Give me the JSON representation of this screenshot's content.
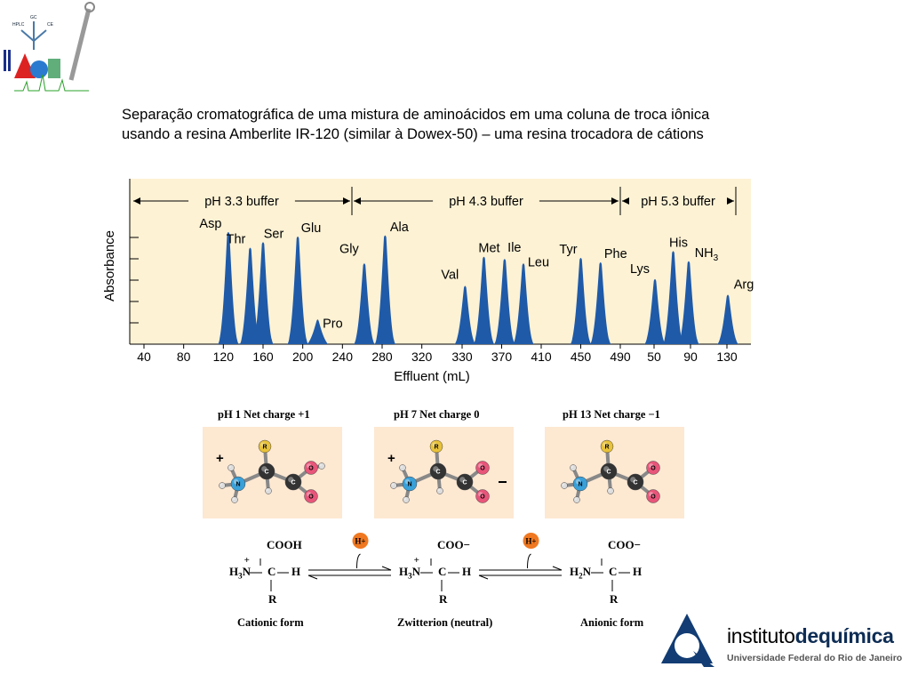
{
  "caption": {
    "line1": "Separação cromatográfica de uma mistura de aminoácidos em uma coluna de troca iônica",
    "line2": "usando a resina Amberlite IR-120 (similar à Dowex-50) – uma resina trocadora de cátions"
  },
  "top_logo": {
    "labels": [
      "HPLC",
      "GC",
      "CE"
    ]
  },
  "chart_data": {
    "type": "line",
    "xlabel": "Effluent (mL)",
    "ylabel": "Absorbance",
    "x_tick_labels": [
      "40",
      "80",
      "120",
      "160",
      "200",
      "240",
      "280",
      "320",
      "330",
      "370",
      "410",
      "450",
      "490",
      "50",
      "90",
      "130"
    ],
    "buffers": [
      {
        "label": "pH 3.3 buffer",
        "x_start": 40,
        "x_end": 250
      },
      {
        "label": "pH 4.3 buffer",
        "x_start": 250,
        "x_end": 490
      },
      {
        "label": "pH 5.3 buffer",
        "x_start": 0,
        "x_end": 140
      }
    ],
    "series": [
      {
        "name": "Asp",
        "x": 125,
        "height": 1.0
      },
      {
        "name": "Thr",
        "x": 147,
        "height": 0.86
      },
      {
        "name": "Ser",
        "x": 160,
        "height": 0.91
      },
      {
        "name": "Glu",
        "x": 195,
        "height": 0.96
      },
      {
        "name": "Pro",
        "x": 215,
        "height": 0.22
      },
      {
        "name": "Gly",
        "x": 262,
        "height": 0.72
      },
      {
        "name": "Ala",
        "x": 283,
        "height": 0.97
      },
      {
        "name": "Val",
        "x": 333,
        "height": 0.52
      },
      {
        "name": "Met",
        "x": 352,
        "height": 0.78
      },
      {
        "name": "Ile",
        "x": 373,
        "height": 0.76
      },
      {
        "name": "Leu",
        "x": 392,
        "height": 0.72
      },
      {
        "name": "Tyr",
        "x": 450,
        "height": 0.77
      },
      {
        "name": "Phe",
        "x": 470,
        "height": 0.73
      },
      {
        "name": "Lys",
        "x": 51,
        "height": 0.58
      },
      {
        "name": "His",
        "x": 71,
        "height": 0.83
      },
      {
        "name": "NH3",
        "x": 88,
        "height": 0.74
      },
      {
        "name": "Arg",
        "x": 131,
        "height": 0.44
      }
    ]
  },
  "figure2": {
    "panels": [
      {
        "title": "pH 1   Net charge +1",
        "charge": "+"
      },
      {
        "title": "pH 7   Net charge 0",
        "charge": "+"
      },
      {
        "title": "pH 13   Net charge −1",
        "charge": ""
      }
    ],
    "atoms": {
      "r": "R",
      "c": "C",
      "n": "N",
      "o": "O"
    },
    "equilibria": {
      "proton": "H+",
      "cationic": {
        "top": "COOH",
        "left": "H3N",
        "center": "C",
        "right": "H",
        "bottom": "R",
        "label": "Cationic form"
      },
      "zwitterion": {
        "top": "COO−",
        "left": "H3N",
        "center": "C",
        "right": "H",
        "bottom": "R",
        "label": "Zwitterion (neutral)"
      },
      "anionic": {
        "top": "COO−",
        "left": "H2N",
        "center": "C",
        "right": "H",
        "bottom": "R",
        "label": "Anionic form"
      }
    }
  },
  "footer_logo": {
    "name_light": "instituto",
    "name_bold": "dequímica",
    "subtitle": "Universidade Federal do Rio de Janeiro"
  }
}
